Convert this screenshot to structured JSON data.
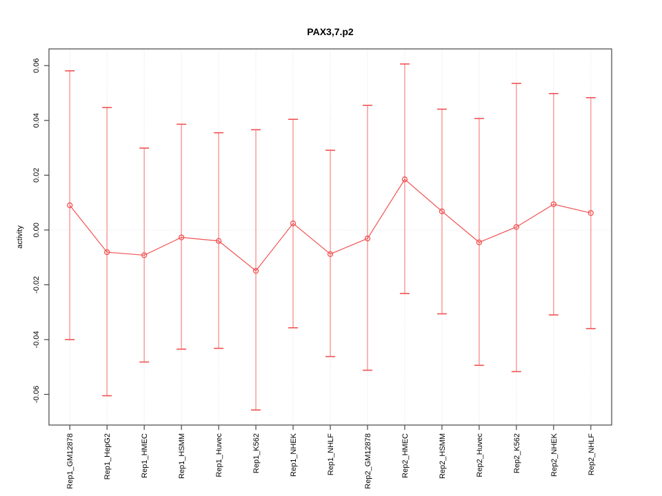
{
  "chart_data": {
    "type": "line",
    "title": "PAX3,7.p2",
    "xlabel": "",
    "ylabel": "activity",
    "categories": [
      "Rep1_GM12878",
      "Rep1_HepG2",
      "Rep1_HMEC",
      "Rep1_HSMM",
      "Rep1_Huvec",
      "Rep1_K562",
      "Rep1_NHEK",
      "Rep1_NHLF",
      "Rep2_GM12878",
      "Rep2_HMEC",
      "Rep2_HSMM",
      "Rep2_Huvec",
      "Rep2_K562",
      "Rep2_NHEK",
      "Rep2_NHLF"
    ],
    "series": [
      {
        "name": "activity",
        "values": [
          0.009,
          -0.0081,
          -0.0092,
          -0.0027,
          -0.004,
          -0.0149,
          0.0024,
          -0.0088,
          -0.0031,
          0.0185,
          0.0068,
          -0.0045,
          0.0011,
          0.0094,
          0.0062
        ],
        "upper": [
          0.0581,
          0.0447,
          0.0299,
          0.0386,
          0.0355,
          0.0366,
          0.0404,
          0.0291,
          0.0455,
          0.0606,
          0.0441,
          0.0407,
          0.0535,
          0.0498,
          0.0483
        ],
        "lower": [
          -0.04,
          -0.0605,
          -0.0482,
          -0.0435,
          -0.0432,
          -0.0657,
          -0.0357,
          -0.0462,
          -0.0512,
          -0.0232,
          -0.0306,
          -0.0494,
          -0.0517,
          -0.031,
          -0.036
        ]
      }
    ],
    "ylim": [
      -0.0712,
      0.0661
    ],
    "yticks": [
      -0.06,
      -0.04,
      -0.02,
      0.0,
      0.02,
      0.04,
      0.06
    ],
    "legend": "none",
    "grid": {
      "vertical_dotted_per_category": true,
      "horizontal_zero_line_dotted": true
    },
    "colors": {
      "series": "#f15050",
      "error_bar": "#f8a2a2",
      "grid": "#dedede",
      "axis": "#444444",
      "text": "#000000",
      "background": "#ffffff"
    }
  }
}
